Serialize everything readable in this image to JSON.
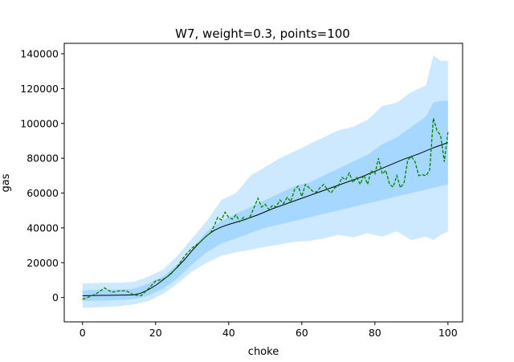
{
  "chart_data": {
    "type": "line",
    "title": "W7, weight=0.3, points=100",
    "xlabel": "choke",
    "ylabel": "gas",
    "xlim": [
      -5,
      104
    ],
    "ylim": [
      -14000,
      146000
    ],
    "xticks": [
      0,
      20,
      40,
      60,
      80,
      100
    ],
    "yticks": [
      0,
      20000,
      40000,
      60000,
      80000,
      100000,
      120000,
      140000
    ],
    "grid": false,
    "legend": "none",
    "colors": {
      "outer_band": "#cce9ff",
      "inner_band": "#a6d8ff",
      "mean_line": "#000000",
      "observed_line": "#008000"
    },
    "series": [
      {
        "style": "band-outer",
        "x": [
          0,
          5,
          10,
          14,
          18,
          22,
          26,
          30,
          34,
          38,
          42,
          46,
          50,
          54,
          58,
          62,
          66,
          70,
          74,
          78,
          82,
          86,
          90,
          94,
          96,
          98,
          100
        ],
        "lower": [
          -6000,
          -5500,
          -5000,
          -4000,
          -2000,
          2000,
          8000,
          15000,
          20000,
          24000,
          26000,
          27500,
          29000,
          30500,
          32000,
          32500,
          34000,
          36000,
          34500,
          37000,
          35000,
          38000,
          33000,
          35000,
          33000,
          36000,
          38000
        ],
        "upper": [
          8000,
          8500,
          8500,
          9000,
          12000,
          16000,
          24000,
          34000,
          44000,
          56000,
          60000,
          70000,
          75000,
          80000,
          84000,
          88000,
          92000,
          96000,
          98000,
          102000,
          110000,
          112000,
          118000,
          122000,
          139000,
          136000,
          136000
        ]
      },
      {
        "style": "band-inner",
        "x": [
          0,
          5,
          10,
          14,
          18,
          22,
          26,
          30,
          34,
          38,
          42,
          46,
          50,
          54,
          58,
          62,
          66,
          70,
          74,
          78,
          82,
          86,
          90,
          94,
          96,
          98,
          100
        ],
        "lower": [
          -2000,
          -1800,
          -1500,
          -1000,
          1000,
          5000,
          11000,
          19000,
          26000,
          31000,
          34000,
          37000,
          40000,
          42000,
          44000,
          46000,
          48000,
          50000,
          52000,
          54000,
          56000,
          58000,
          60000,
          62000,
          63000,
          64000,
          65000
        ],
        "upper": [
          4000,
          4500,
          4500,
          5000,
          8000,
          12000,
          19000,
          28000,
          38000,
          44000,
          48000,
          52000,
          56000,
          60000,
          64000,
          66000,
          70000,
          74000,
          78000,
          82000,
          88000,
          92000,
          98000,
          104000,
          112000,
          113000,
          113000
        ]
      },
      {
        "style": "mean",
        "x": [
          0,
          5,
          10,
          14,
          16,
          18,
          20,
          22,
          24,
          26,
          28,
          30,
          32,
          34,
          36,
          38,
          40,
          44,
          48,
          52,
          56,
          60,
          64,
          68,
          72,
          76,
          80,
          84,
          88,
          92,
          96,
          100
        ],
        "y": [
          1000,
          1200,
          1300,
          1500,
          2500,
          4500,
          7000,
          10000,
          13500,
          17500,
          22000,
          27000,
          31500,
          35500,
          38500,
          40500,
          42000,
          44500,
          47500,
          51000,
          54000,
          57000,
          60000,
          63000,
          66000,
          69000,
          72500,
          76000,
          79500,
          82500,
          86000,
          89000
        ]
      },
      {
        "style": "observed",
        "x": [
          0,
          2,
          4,
          6,
          8,
          10,
          12,
          14,
          16,
          18,
          20,
          22,
          24,
          26,
          28,
          30,
          32,
          34,
          35,
          36,
          37,
          38,
          39,
          40,
          41,
          42,
          43,
          44,
          45,
          46,
          47,
          48,
          49,
          50,
          51,
          52,
          53,
          54,
          55,
          56,
          57,
          58,
          59,
          60,
          61,
          62,
          63,
          64,
          65,
          66,
          67,
          68,
          69,
          70,
          71,
          72,
          73,
          74,
          75,
          76,
          77,
          78,
          79,
          80,
          81,
          82,
          83,
          84,
          85,
          86,
          87,
          88,
          89,
          90,
          91,
          92,
          93,
          94,
          95,
          96,
          97,
          98,
          99,
          100
        ],
        "y": [
          -1000,
          500,
          2500,
          5500,
          3000,
          3800,
          3800,
          1500,
          1000,
          5000,
          9500,
          10500,
          13000,
          18000,
          24000,
          28500,
          31500,
          35500,
          37000,
          41000,
          46000,
          44500,
          49000,
          46000,
          45000,
          47500,
          43500,
          46000,
          45000,
          47000,
          52000,
          57000,
          52000,
          53500,
          50500,
          53000,
          52000,
          56000,
          54000,
          57500,
          55000,
          62000,
          64000,
          58000,
          65000,
          63000,
          61000,
          60500,
          63000,
          65000,
          62000,
          60000,
          63000,
          64000,
          69000,
          67500,
          71500,
          66000,
          69000,
          65000,
          70500,
          65000,
          73000,
          71000,
          80000,
          71000,
          73000,
          65000,
          63500,
          70000,
          63000,
          66000,
          79000,
          81000,
          78000,
          70000,
          70500,
          70000,
          73000,
          103000,
          96000,
          93000,
          78000,
          95000
        ]
      }
    ]
  }
}
